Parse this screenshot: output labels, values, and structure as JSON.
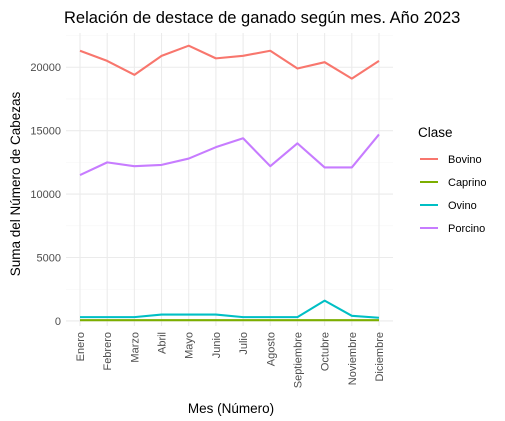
{
  "chart_data": {
    "type": "line",
    "title": "Relación de destace de ganado según mes. Año 2023",
    "xlabel": "Mes (Número)",
    "ylabel": "Suma del Número de Cabezas",
    "categories": [
      "Enero",
      "Febrero",
      "Marzo",
      "Abril",
      "Mayo",
      "Junio",
      "Julio",
      "Agosto",
      "Septiembre",
      "Octubre",
      "Noviembre",
      "Diciembre"
    ],
    "ylim": [
      -400,
      22700
    ],
    "yticks": [
      0,
      5000,
      10000,
      15000,
      20000
    ],
    "grid": true,
    "legend_title": "Clase",
    "legend_position": "right",
    "series": [
      {
        "name": "Bovino",
        "color": "#F8766D",
        "values": [
          21300,
          20500,
          19400,
          20900,
          21700,
          20700,
          20900,
          21300,
          19900,
          20400,
          19100,
          20500
        ]
      },
      {
        "name": "Caprino",
        "color": "#7CAE00",
        "values": [
          60,
          60,
          60,
          60,
          60,
          60,
          60,
          60,
          60,
          60,
          60,
          60
        ]
      },
      {
        "name": "Ovino",
        "color": "#00BFC4",
        "values": [
          300,
          300,
          300,
          500,
          500,
          500,
          300,
          300,
          300,
          1600,
          400,
          250
        ]
      },
      {
        "name": "Porcino",
        "color": "#C77CFF",
        "values": [
          11500,
          12500,
          12200,
          12300,
          12800,
          13700,
          14400,
          12200,
          14000,
          12100,
          12100,
          14700
        ]
      }
    ]
  }
}
